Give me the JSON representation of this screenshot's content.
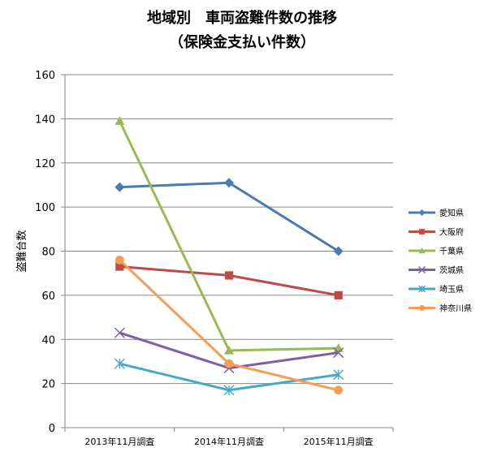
{
  "chart_data": {
    "type": "line",
    "title": [
      "地域別　車両盗難件数の推移",
      "（保険金支払い件数）"
    ],
    "xlabel": "",
    "ylabel": "盗難台数",
    "categories": [
      "2013年11月調査",
      "2014年11月調査",
      "2015年11月調査"
    ],
    "ylim": [
      0,
      160
    ],
    "yticks": [
      0,
      20,
      40,
      60,
      80,
      100,
      120,
      140,
      160
    ],
    "grid": true,
    "legend_position": "right",
    "series": [
      {
        "name": "愛知県",
        "values": [
          109,
          111,
          80
        ],
        "color": "#4a7bb0",
        "marker": "diamond"
      },
      {
        "name": "大阪府",
        "values": [
          73,
          69,
          60
        ],
        "color": "#be4b48",
        "marker": "square"
      },
      {
        "name": "千葉県",
        "values": [
          139,
          35,
          36
        ],
        "color": "#98b954",
        "marker": "triangle"
      },
      {
        "name": "茨城県",
        "values": [
          43,
          27,
          34
        ],
        "color": "#7d60a0",
        "marker": "x"
      },
      {
        "name": "埼玉県",
        "values": [
          29,
          17,
          24
        ],
        "color": "#46aac4",
        "marker": "star"
      },
      {
        "name": "神奈川県",
        "values": [
          76,
          29,
          17
        ],
        "color": "#f59d56",
        "marker": "circle"
      }
    ]
  }
}
